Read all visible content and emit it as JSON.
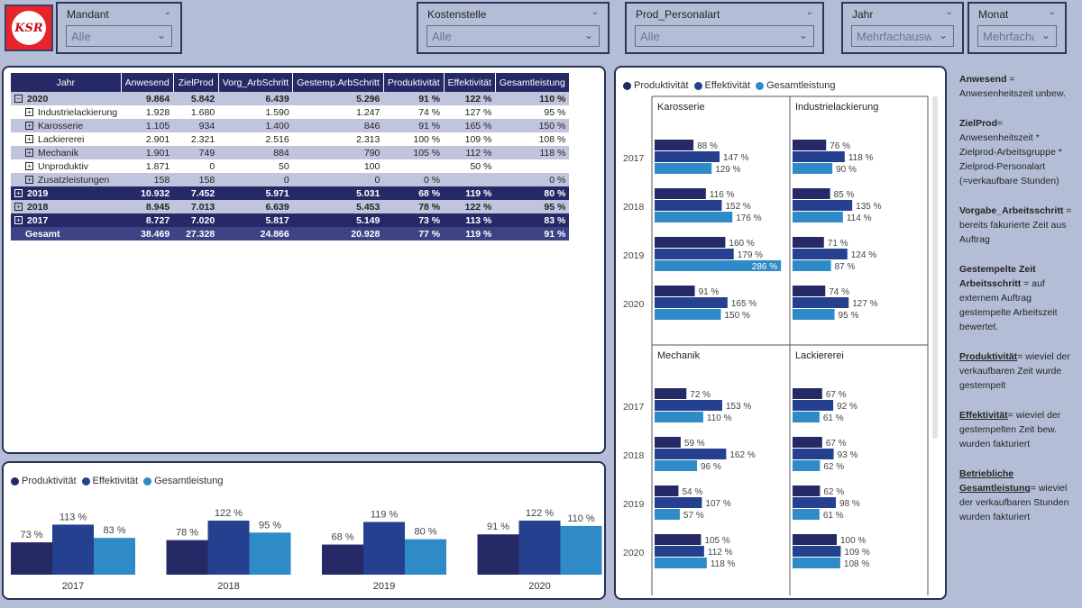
{
  "logo": {
    "text": "KSR"
  },
  "slicers": [
    {
      "id": "mandant",
      "title": "Mandant",
      "value": "Alle"
    },
    {
      "id": "kostenstelle",
      "title": "Kostenstelle",
      "value": "Alle"
    },
    {
      "id": "prod_personalart",
      "title": "Prod_Personalart",
      "value": "Alle"
    },
    {
      "id": "jahr",
      "title": "Jahr",
      "value": "Mehrfachauswa..."
    },
    {
      "id": "monat",
      "title": "Monat",
      "value": "Mehrfacha..."
    }
  ],
  "matrix": {
    "headers": [
      "Jahr",
      "Anwesend",
      "ZielProd",
      "Vorg_ArbSchritt",
      "Gestemp.ArbSchritt",
      "Produktivität",
      "Effektivität",
      "Gesamtleistung"
    ],
    "rows": [
      {
        "kind": "year-light",
        "toggle": "−",
        "label": "2020",
        "cells": [
          "9.864",
          "5.842",
          "6.439",
          "5.296",
          "91 %",
          "122 %",
          "110 %"
        ]
      },
      {
        "kind": "sub",
        "toggle": "+",
        "label": "Industrielackierung",
        "cells": [
          "1.928",
          "1.680",
          "1.590",
          "1.247",
          "74 %",
          "127 %",
          "95 %"
        ]
      },
      {
        "kind": "sub band",
        "toggle": "+",
        "label": "Karosserie",
        "cells": [
          "1.105",
          "934",
          "1.400",
          "846",
          "91 %",
          "165 %",
          "150 %"
        ]
      },
      {
        "kind": "sub",
        "toggle": "+",
        "label": "Lackiererei",
        "cells": [
          "2.901",
          "2.321",
          "2.516",
          "2.313",
          "100 %",
          "109 %",
          "108 %"
        ]
      },
      {
        "kind": "sub band",
        "toggle": "+",
        "label": "Mechanik",
        "cells": [
          "1.901",
          "749",
          "884",
          "790",
          "105 %",
          "112 %",
          "118 %"
        ]
      },
      {
        "kind": "sub",
        "toggle": "+",
        "label": "Unproduktiv",
        "cells": [
          "1.871",
          "0",
          "50",
          "100",
          "",
          "50 %",
          ""
        ]
      },
      {
        "kind": "sub band",
        "toggle": "+",
        "label": "Zusatzleistungen",
        "cells": [
          "158",
          "158",
          "0",
          "0",
          "0 %",
          "",
          "0 %"
        ]
      },
      {
        "kind": "year-dark",
        "toggle": "+",
        "label": "2019",
        "cells": [
          "10.932",
          "7.452",
          "5.971",
          "5.031",
          "68 %",
          "119 %",
          "80 %"
        ]
      },
      {
        "kind": "year-light",
        "toggle": "+",
        "label": "2018",
        "cells": [
          "8.945",
          "7.013",
          "6.639",
          "5.453",
          "78 %",
          "122 %",
          "95 %"
        ]
      },
      {
        "kind": "year-dark",
        "toggle": "+",
        "label": "2017",
        "cells": [
          "8.727",
          "7.020",
          "5.817",
          "5.149",
          "73 %",
          "113 %",
          "83 %"
        ]
      }
    ],
    "total": {
      "label": "Gesamt",
      "cells": [
        "38.469",
        "27.328",
        "24.866",
        "20.928",
        "77 %",
        "119 %",
        "91 %"
      ]
    }
  },
  "legend": [
    {
      "label": "Produktivität",
      "color": "#252a66"
    },
    {
      "label": "Effektivität",
      "color": "#25408f"
    },
    {
      "label": "Gesamtleistung",
      "color": "#2f8ac8"
    }
  ],
  "chart_data": [
    {
      "type": "bar",
      "categories": [
        "2017",
        "2018",
        "2019",
        "2020"
      ],
      "series": [
        {
          "name": "Produktivität",
          "values": [
            73,
            78,
            68,
            91
          ]
        },
        {
          "name": "Effektivität",
          "values": [
            113,
            122,
            119,
            122
          ]
        },
        {
          "name": "Gesamtleistung",
          "values": [
            83,
            95,
            80,
            110
          ]
        }
      ],
      "value_suffix": " %",
      "colors": [
        "#252a66",
        "#25408f",
        "#2f8ac8"
      ],
      "legend_position": "top-left"
    },
    {
      "type": "bar",
      "orientation": "horizontal",
      "layout": "small-multiples",
      "categories": [
        "2017",
        "2018",
        "2019",
        "2020"
      ],
      "value_suffix": " %",
      "colors": [
        "#252a66",
        "#25408f",
        "#2f8ac8"
      ],
      "legend_position": "top-left",
      "panels": [
        {
          "title": "Karosserie",
          "series": [
            {
              "name": "Produktivität",
              "values": [
                88,
                116,
                160,
                91
              ]
            },
            {
              "name": "Effektivität",
              "values": [
                147,
                152,
                179,
                165
              ]
            },
            {
              "name": "Gesamtleistung",
              "values": [
                129,
                176,
                286,
                150
              ]
            }
          ]
        },
        {
          "title": "Industrielackierung",
          "series": [
            {
              "name": "Produktivität",
              "values": [
                76,
                85,
                71,
                74
              ]
            },
            {
              "name": "Effektivität",
              "values": [
                118,
                135,
                124,
                127
              ]
            },
            {
              "name": "Gesamtleistung",
              "values": [
                90,
                114,
                87,
                95
              ]
            }
          ]
        },
        {
          "title": "Mechanik",
          "series": [
            {
              "name": "Produktivität",
              "values": [
                72,
                59,
                54,
                105
              ]
            },
            {
              "name": "Effektivität",
              "values": [
                153,
                162,
                107,
                112
              ]
            },
            {
              "name": "Gesamtleistung",
              "values": [
                110,
                96,
                57,
                118
              ]
            }
          ]
        },
        {
          "title": "Lackiererei",
          "series": [
            {
              "name": "Produktivität",
              "values": [
                67,
                67,
                62,
                100
              ]
            },
            {
              "name": "Effektivität",
              "values": [
                92,
                93,
                98,
                109
              ]
            },
            {
              "name": "Gesamtleistung",
              "values": [
                61,
                62,
                61,
                108
              ]
            }
          ]
        }
      ]
    }
  ],
  "explanations": [
    {
      "term": "Anwesend",
      "underline": false,
      "text": " = Anwesenheitszeit unbew."
    },
    {
      "term": "ZielProd",
      "underline": false,
      "text": "= Anwesenheitszeit * Zielprod-Arbeitsgruppe * Zielprod-Personalart (=verkaufbare Stunden)"
    },
    {
      "term": "Vorgabe_Arbeitsschritt",
      "underline": false,
      "text": " = bereits fakurierte Zeit aus Auftrag"
    },
    {
      "term": "Gestempelte Zeit Arbeitsschritt",
      "underline": false,
      "text": " = auf externem Auftrag gestempelte Arbeitszeit bewertet."
    },
    {
      "term": "Produktivität",
      "underline": true,
      "text": "= wieviel der verkaufbaren Zeit wurde gestempelt"
    },
    {
      "term": "Effektivität",
      "underline": true,
      "text": "= wieviel der gestempelten Zeit bew. wurden fakturiert"
    },
    {
      "term": "Betriebliche Gesamtleistung",
      "underline": true,
      "text": "= wieviel der verkaufbaren Stunden wurden fakturiert"
    }
  ]
}
